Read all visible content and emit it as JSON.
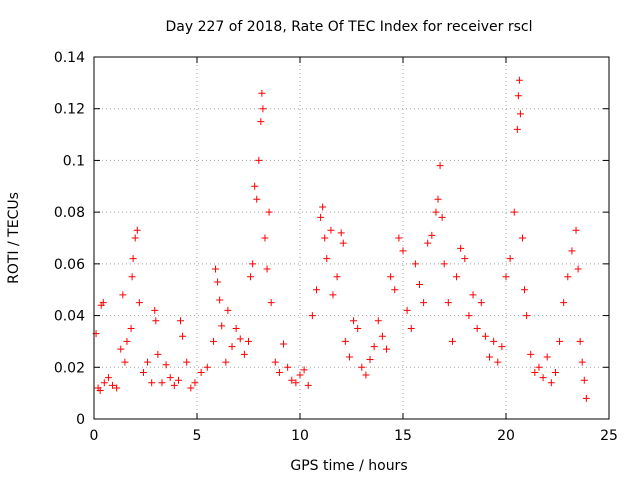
{
  "chart_data": {
    "type": "scatter",
    "title": "Day 227 of 2018, Rate Of TEC Index for receiver rscl",
    "xlabel": "GPS time / hours",
    "ylabel": "ROTI / TECUs",
    "xlim": [
      0,
      25
    ],
    "ylim": [
      0,
      0.14
    ],
    "xticks": [
      0,
      5,
      10,
      15,
      20,
      25
    ],
    "xtick_labels": [
      "0",
      "5",
      "10",
      "15",
      "20",
      "25"
    ],
    "yticks": [
      0,
      0.02,
      0.04,
      0.06,
      0.08,
      0.1,
      0.12,
      0.14
    ],
    "ytick_labels": [
      "0",
      "0.02",
      "0.04",
      "0.06",
      "0.08",
      "0.1",
      "0.12",
      "0.14"
    ],
    "grid": true,
    "marker": "plus",
    "series_color": "#ff0000",
    "series": [
      {
        "name": "ROTI",
        "points": [
          [
            0.1,
            0.033
          ],
          [
            0.2,
            0.012
          ],
          [
            0.3,
            0.011
          ],
          [
            0.35,
            0.044
          ],
          [
            0.45,
            0.045
          ],
          [
            0.5,
            0.014
          ],
          [
            0.7,
            0.016
          ],
          [
            0.9,
            0.013
          ],
          [
            1.1,
            0.012
          ],
          [
            1.3,
            0.027
          ],
          [
            1.4,
            0.048
          ],
          [
            1.5,
            0.022
          ],
          [
            1.6,
            0.03
          ],
          [
            1.8,
            0.035
          ],
          [
            1.85,
            0.055
          ],
          [
            1.9,
            0.062
          ],
          [
            2.0,
            0.07
          ],
          [
            2.1,
            0.073
          ],
          [
            2.2,
            0.045
          ],
          [
            2.4,
            0.018
          ],
          [
            2.6,
            0.022
          ],
          [
            2.8,
            0.014
          ],
          [
            2.95,
            0.042
          ],
          [
            3.0,
            0.038
          ],
          [
            3.1,
            0.025
          ],
          [
            3.3,
            0.014
          ],
          [
            3.5,
            0.021
          ],
          [
            3.7,
            0.016
          ],
          [
            3.9,
            0.013
          ],
          [
            4.1,
            0.015
          ],
          [
            4.2,
            0.038
          ],
          [
            4.3,
            0.032
          ],
          [
            4.5,
            0.022
          ],
          [
            4.7,
            0.012
          ],
          [
            4.9,
            0.014
          ],
          [
            5.2,
            0.018
          ],
          [
            5.5,
            0.02
          ],
          [
            5.8,
            0.03
          ],
          [
            5.9,
            0.058
          ],
          [
            6.0,
            0.053
          ],
          [
            6.1,
            0.046
          ],
          [
            6.2,
            0.036
          ],
          [
            6.4,
            0.022
          ],
          [
            6.5,
            0.042
          ],
          [
            6.7,
            0.028
          ],
          [
            6.9,
            0.035
          ],
          [
            7.1,
            0.031
          ],
          [
            7.3,
            0.025
          ],
          [
            7.5,
            0.03
          ],
          [
            7.6,
            0.055
          ],
          [
            7.7,
            0.06
          ],
          [
            7.8,
            0.09
          ],
          [
            7.9,
            0.085
          ],
          [
            8.0,
            0.1
          ],
          [
            8.1,
            0.115
          ],
          [
            8.15,
            0.126
          ],
          [
            8.2,
            0.12
          ],
          [
            8.3,
            0.07
          ],
          [
            8.4,
            0.058
          ],
          [
            8.5,
            0.08
          ],
          [
            8.6,
            0.045
          ],
          [
            8.8,
            0.022
          ],
          [
            9.0,
            0.018
          ],
          [
            9.2,
            0.029
          ],
          [
            9.4,
            0.02
          ],
          [
            9.6,
            0.015
          ],
          [
            9.8,
            0.014
          ],
          [
            10.0,
            0.017
          ],
          [
            10.2,
            0.019
          ],
          [
            10.4,
            0.013
          ],
          [
            10.6,
            0.04
          ],
          [
            10.8,
            0.05
          ],
          [
            11.0,
            0.078
          ],
          [
            11.1,
            0.082
          ],
          [
            11.2,
            0.07
          ],
          [
            11.3,
            0.062
          ],
          [
            11.5,
            0.073
          ],
          [
            11.6,
            0.048
          ],
          [
            11.8,
            0.055
          ],
          [
            12.0,
            0.072
          ],
          [
            12.1,
            0.068
          ],
          [
            12.2,
            0.03
          ],
          [
            12.4,
            0.024
          ],
          [
            12.6,
            0.038
          ],
          [
            12.8,
            0.035
          ],
          [
            13.0,
            0.02
          ],
          [
            13.2,
            0.017
          ],
          [
            13.4,
            0.023
          ],
          [
            13.6,
            0.028
          ],
          [
            13.8,
            0.038
          ],
          [
            14.0,
            0.032
          ],
          [
            14.2,
            0.027
          ],
          [
            14.4,
            0.055
          ],
          [
            14.6,
            0.05
          ],
          [
            14.8,
            0.07
          ],
          [
            15.0,
            0.065
          ],
          [
            15.2,
            0.042
          ],
          [
            15.4,
            0.035
          ],
          [
            15.6,
            0.06
          ],
          [
            15.8,
            0.052
          ],
          [
            16.0,
            0.045
          ],
          [
            16.2,
            0.068
          ],
          [
            16.4,
            0.071
          ],
          [
            16.6,
            0.08
          ],
          [
            16.7,
            0.085
          ],
          [
            16.8,
            0.098
          ],
          [
            16.9,
            0.078
          ],
          [
            17.0,
            0.06
          ],
          [
            17.2,
            0.045
          ],
          [
            17.4,
            0.03
          ],
          [
            17.6,
            0.055
          ],
          [
            17.8,
            0.066
          ],
          [
            18.0,
            0.062
          ],
          [
            18.2,
            0.04
          ],
          [
            18.4,
            0.048
          ],
          [
            18.6,
            0.035
          ],
          [
            18.8,
            0.045
          ],
          [
            19.0,
            0.032
          ],
          [
            19.2,
            0.024
          ],
          [
            19.4,
            0.03
          ],
          [
            19.6,
            0.022
          ],
          [
            19.8,
            0.028
          ],
          [
            20.0,
            0.055
          ],
          [
            20.2,
            0.062
          ],
          [
            20.4,
            0.08
          ],
          [
            20.55,
            0.112
          ],
          [
            20.6,
            0.125
          ],
          [
            20.65,
            0.131
          ],
          [
            20.7,
            0.118
          ],
          [
            20.8,
            0.07
          ],
          [
            20.9,
            0.05
          ],
          [
            21.0,
            0.04
          ],
          [
            21.2,
            0.025
          ],
          [
            21.4,
            0.018
          ],
          [
            21.6,
            0.02
          ],
          [
            21.8,
            0.016
          ],
          [
            22.0,
            0.024
          ],
          [
            22.2,
            0.014
          ],
          [
            22.4,
            0.018
          ],
          [
            22.6,
            0.03
          ],
          [
            22.8,
            0.045
          ],
          [
            23.0,
            0.055
          ],
          [
            23.2,
            0.065
          ],
          [
            23.4,
            0.073
          ],
          [
            23.5,
            0.058
          ],
          [
            23.6,
            0.03
          ],
          [
            23.7,
            0.022
          ],
          [
            23.8,
            0.015
          ],
          [
            23.9,
            0.008
          ]
        ]
      }
    ]
  }
}
